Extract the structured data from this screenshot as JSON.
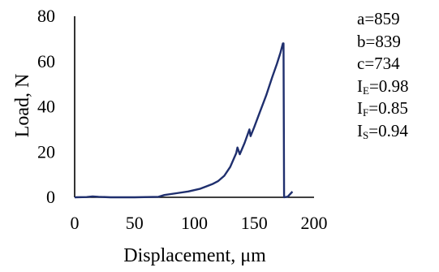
{
  "chart_data": {
    "type": "line",
    "xlabel": "Displacement, μm",
    "ylabel": "Load, N",
    "xlim": [
      0,
      200
    ],
    "ylim": [
      0,
      80
    ],
    "xticks": [
      0,
      50,
      100,
      150,
      200
    ],
    "yticks": [
      0,
      20,
      40,
      60,
      80
    ],
    "grid": false,
    "series": [
      {
        "color": "#1f2f6e",
        "points": [
          [
            0,
            0
          ],
          [
            10,
            0.1
          ],
          [
            15,
            0.4
          ],
          [
            20,
            0.2
          ],
          [
            30,
            0
          ],
          [
            50,
            0
          ],
          [
            70,
            0.2
          ],
          [
            75,
            1.0
          ],
          [
            85,
            1.8
          ],
          [
            95,
            2.6
          ],
          [
            105,
            3.8
          ],
          [
            115,
            5.8
          ],
          [
            120,
            7.2
          ],
          [
            125,
            9.5
          ],
          [
            130,
            13.5
          ],
          [
            135,
            19.5
          ],
          [
            136,
            22
          ],
          [
            138,
            19
          ],
          [
            142,
            24
          ],
          [
            146,
            30
          ],
          [
            147,
            27
          ],
          [
            150,
            31
          ],
          [
            155,
            38
          ],
          [
            160,
            45
          ],
          [
            165,
            53
          ],
          [
            169,
            59
          ],
          [
            172,
            64
          ],
          [
            174,
            68
          ],
          [
            174.5,
            68
          ],
          [
            175,
            0
          ],
          [
            178,
            0.3
          ],
          [
            182,
            2.5
          ]
        ]
      }
    ]
  },
  "params": [
    {
      "name": "a",
      "sub": "",
      "value": "=859"
    },
    {
      "name": "b",
      "sub": "",
      "value": "=839"
    },
    {
      "name": "c",
      "sub": "",
      "value": "=734"
    },
    {
      "name": "I",
      "sub": "E",
      "value": "=0.98"
    },
    {
      "name": "I",
      "sub": "F",
      "value": "=0.85"
    },
    {
      "name": "I",
      "sub": "S",
      "value": "=0.94"
    }
  ]
}
